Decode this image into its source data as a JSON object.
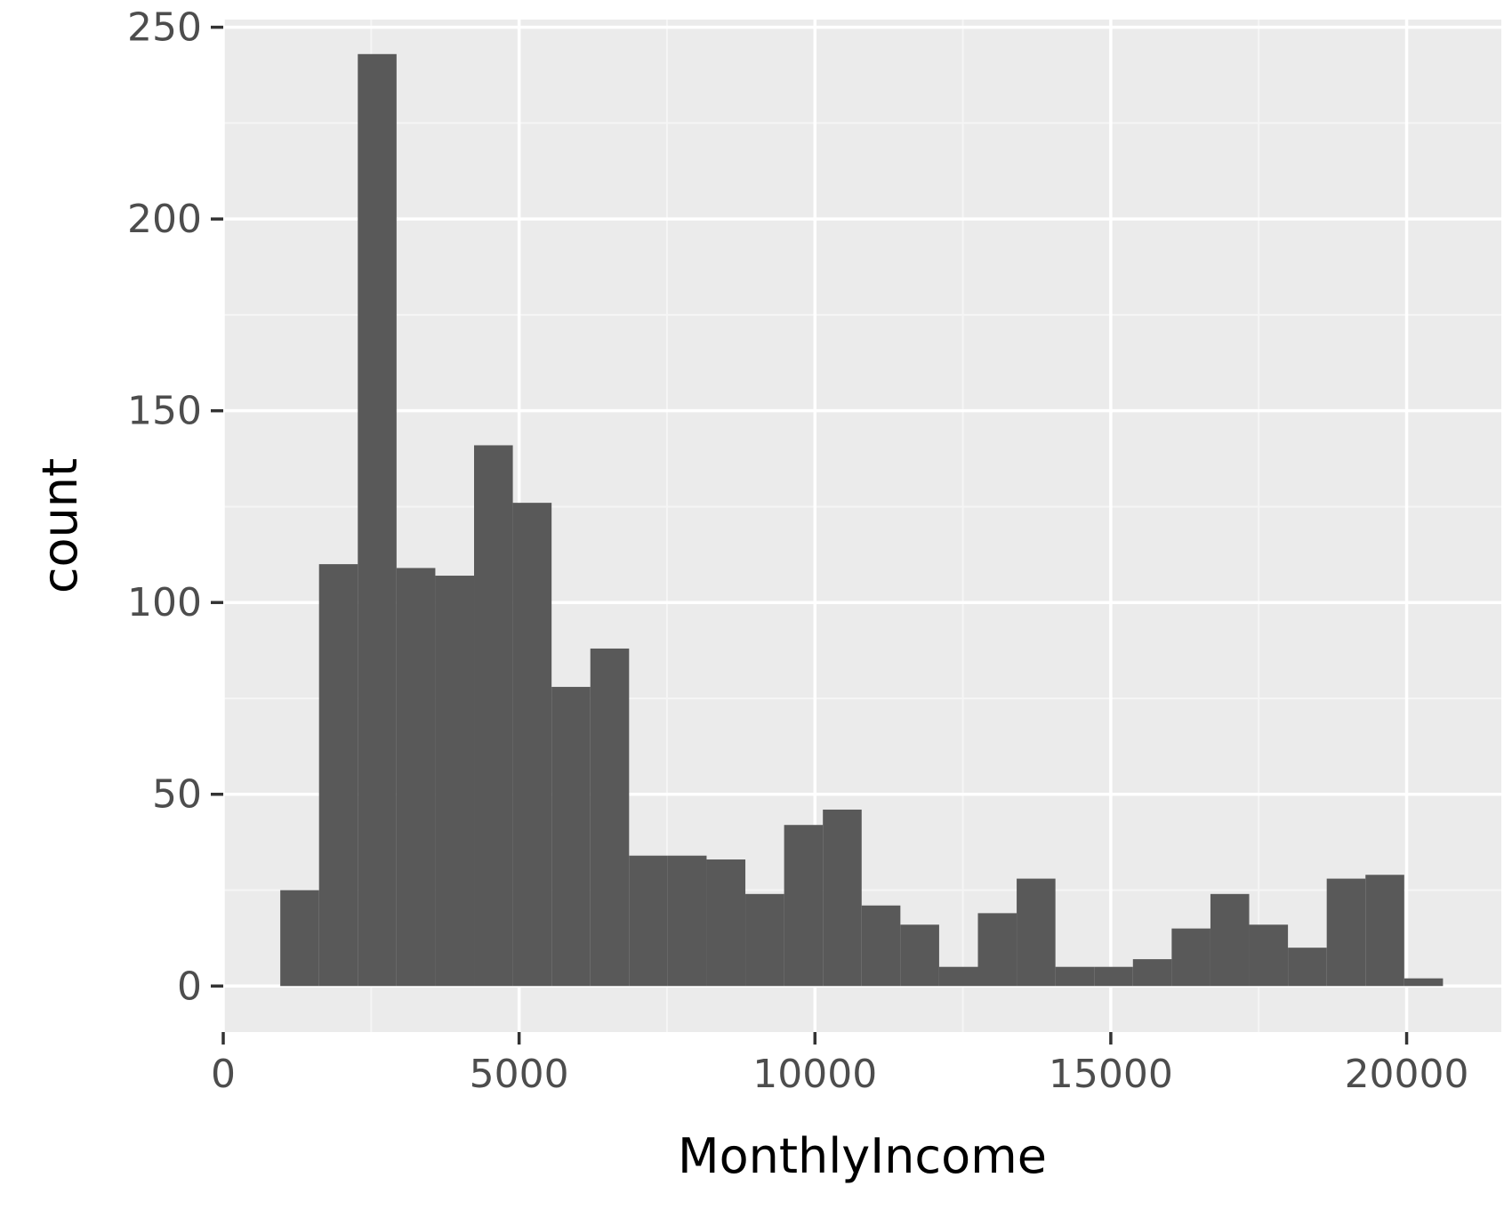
{
  "chart_data": {
    "type": "bar",
    "subtype": "histogram",
    "title": "",
    "xlabel": "MonthlyIncome",
    "ylabel": "count",
    "xlim": [
      0,
      21600
    ],
    "ylim": [
      -12,
      252
    ],
    "x_ticks": [
      0,
      5000,
      10000,
      15000,
      20000
    ],
    "y_ticks": [
      0,
      50,
      100,
      150,
      200,
      250
    ],
    "grid": true,
    "legend": "none",
    "bin_width": 655,
    "bins": [
      {
        "x0": 964,
        "x1": 1619,
        "count": 25
      },
      {
        "x0": 1619,
        "x1": 2274,
        "count": 110
      },
      {
        "x0": 2274,
        "x1": 2929,
        "count": 243
      },
      {
        "x0": 2929,
        "x1": 3584,
        "count": 109
      },
      {
        "x0": 3584,
        "x1": 4239,
        "count": 107
      },
      {
        "x0": 4239,
        "x1": 4894,
        "count": 141
      },
      {
        "x0": 4894,
        "x1": 5549,
        "count": 126
      },
      {
        "x0": 5549,
        "x1": 6204,
        "count": 78
      },
      {
        "x0": 6204,
        "x1": 6859,
        "count": 88
      },
      {
        "x0": 6859,
        "x1": 7514,
        "count": 34
      },
      {
        "x0": 7514,
        "x1": 8169,
        "count": 34
      },
      {
        "x0": 8169,
        "x1": 8824,
        "count": 33
      },
      {
        "x0": 8824,
        "x1": 9479,
        "count": 24
      },
      {
        "x0": 9479,
        "x1": 10134,
        "count": 42
      },
      {
        "x0": 10134,
        "x1": 10789,
        "count": 46
      },
      {
        "x0": 10789,
        "x1": 11444,
        "count": 21
      },
      {
        "x0": 11444,
        "x1": 12099,
        "count": 16
      },
      {
        "x0": 12099,
        "x1": 12754,
        "count": 5
      },
      {
        "x0": 12754,
        "x1": 13409,
        "count": 19
      },
      {
        "x0": 13409,
        "x1": 14064,
        "count": 28
      },
      {
        "x0": 14064,
        "x1": 14719,
        "count": 5
      },
      {
        "x0": 14719,
        "x1": 15374,
        "count": 5
      },
      {
        "x0": 15374,
        "x1": 16029,
        "count": 7
      },
      {
        "x0": 16029,
        "x1": 16684,
        "count": 15
      },
      {
        "x0": 16684,
        "x1": 17339,
        "count": 24
      },
      {
        "x0": 17339,
        "x1": 17994,
        "count": 16
      },
      {
        "x0": 17994,
        "x1": 18649,
        "count": 10
      },
      {
        "x0": 18649,
        "x1": 19304,
        "count": 28
      },
      {
        "x0": 19304,
        "x1": 19959,
        "count": 29
      },
      {
        "x0": 19959,
        "x1": 20614,
        "count": 2
      }
    ],
    "colors": {
      "panel_background": "#ebebeb",
      "grid_major": "#ffffff",
      "grid_minor": "#f5f5f5",
      "bar_fill": "#595959",
      "tick_text": "#4d4d4d",
      "axis_title": "#000000"
    }
  }
}
